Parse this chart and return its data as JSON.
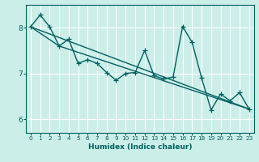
{
  "xlabel": "Humidex (Indice chaleur)",
  "bg_color": "#cceee8",
  "grid_color": "#ffffff",
  "line_color": "#006060",
  "xlim": [
    -0.5,
    23.5
  ],
  "ylim": [
    5.7,
    8.5
  ],
  "yticks": [
    6,
    7,
    8
  ],
  "xticks": [
    0,
    1,
    2,
    3,
    4,
    5,
    6,
    7,
    8,
    9,
    10,
    11,
    12,
    13,
    14,
    15,
    16,
    17,
    18,
    19,
    20,
    21,
    22,
    23
  ],
  "data_x": [
    0,
    1,
    2,
    3,
    4,
    5,
    6,
    7,
    8,
    9,
    10,
    11,
    12,
    13,
    14,
    15,
    16,
    17,
    18,
    19,
    20,
    21,
    22,
    23
  ],
  "data_y": [
    8.02,
    8.28,
    8.02,
    7.6,
    7.75,
    7.22,
    7.3,
    7.22,
    7.02,
    6.85,
    7.0,
    7.02,
    7.5,
    6.95,
    6.88,
    6.92,
    8.03,
    7.68,
    6.9,
    6.2,
    6.55,
    6.4,
    6.58,
    6.22
  ],
  "trend1_x": [
    0,
    23
  ],
  "trend1_y": [
    8.02,
    6.22
  ],
  "trend2_x": [
    0,
    3,
    23
  ],
  "trend2_y": [
    8.02,
    7.6,
    6.22
  ],
  "line_width": 1.0,
  "marker_size": 4
}
